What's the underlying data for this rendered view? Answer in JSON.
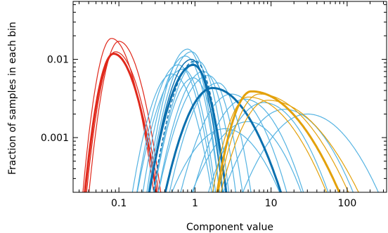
{
  "chart_data": {
    "type": "line",
    "title": "",
    "xlabel": "Component value",
    "ylabel": "Fraction of samples in each bin",
    "xscale": "log",
    "yscale": "log",
    "xlim": [
      0.025,
      330
    ],
    "ylim": [
      0.0002,
      0.055
    ],
    "grid": false,
    "legend": "none",
    "x_ticks": [
      {
        "value": 0.1,
        "label": "0.1"
      },
      {
        "value": 1,
        "label": "1"
      },
      {
        "value": 10,
        "label": "10"
      },
      {
        "value": 100,
        "label": "100"
      }
    ],
    "y_ticks": [
      {
        "value": 0.001,
        "label": "0.001"
      },
      {
        "value": 0.01,
        "label": "0.01"
      }
    ],
    "colors": {
      "red": "#e0281b",
      "dark_blue": "#0a6fae",
      "light_blue": "#55b3e2",
      "orange": "#e3a10a"
    },
    "series": [
      {
        "color": "red",
        "width": 3,
        "dash": "",
        "peak_x": 0.085,
        "peak_y": 0.0118,
        "w_left": 0.2,
        "w_right": 0.3
      },
      {
        "color": "red",
        "width": 1.2,
        "dash": "",
        "peak_x": 0.08,
        "peak_y": 0.0185,
        "w_left": 0.19,
        "w_right": 0.28
      },
      {
        "color": "red",
        "width": 1.2,
        "dash": "",
        "peak_x": 0.1,
        "peak_y": 0.017,
        "w_left": 0.2,
        "w_right": 0.28
      },
      {
        "color": "red",
        "width": 1.2,
        "dash": "",
        "peak_x": 0.09,
        "peak_y": 0.0125,
        "w_left": 0.2,
        "w_right": 0.3
      },
      {
        "color": "light_blue",
        "width": 1.2,
        "dash": "",
        "peak_x": 0.8,
        "peak_y": 0.0135,
        "w_left": 0.28,
        "w_right": 0.22
      },
      {
        "color": "light_blue",
        "width": 1.2,
        "dash": "",
        "peak_x": 0.9,
        "peak_y": 0.0125,
        "w_left": 0.3,
        "w_right": 0.22
      },
      {
        "color": "light_blue",
        "width": 1.2,
        "dash": "",
        "peak_x": 0.75,
        "peak_y": 0.011,
        "w_left": 0.3,
        "w_right": 0.24
      },
      {
        "color": "light_blue",
        "width": 1.2,
        "dash": "",
        "peak_x": 1.1,
        "peak_y": 0.0095,
        "w_left": 0.32,
        "w_right": 0.22
      },
      {
        "color": "light_blue",
        "width": 1.2,
        "dash": "",
        "peak_x": 0.6,
        "peak_y": 0.0085,
        "w_left": 0.3,
        "w_right": 0.26
      },
      {
        "color": "light_blue",
        "width": 1.2,
        "dash": "",
        "peak_x": 0.7,
        "peak_y": 0.0075,
        "w_left": 0.34,
        "w_right": 0.24
      },
      {
        "color": "light_blue",
        "width": 1.2,
        "dash": "",
        "peak_x": 1.3,
        "peak_y": 0.007,
        "w_left": 0.34,
        "w_right": 0.24
      },
      {
        "color": "light_blue",
        "width": 1.2,
        "dash": "",
        "peak_x": 0.5,
        "peak_y": 0.0065,
        "w_left": 0.3,
        "w_right": 0.3
      },
      {
        "color": "light_blue",
        "width": 1.2,
        "dash": "",
        "peak_x": 1.5,
        "peak_y": 0.0062,
        "w_left": 0.38,
        "w_right": 0.26
      },
      {
        "color": "light_blue",
        "width": 1.2,
        "dash": "",
        "peak_x": 2.0,
        "peak_y": 0.005,
        "w_left": 0.38,
        "w_right": 0.26
      },
      {
        "color": "light_blue",
        "width": 1.2,
        "dash": "",
        "peak_x": 0.95,
        "peak_y": 0.0058,
        "w_left": 0.3,
        "w_right": 0.25
      },
      {
        "color": "light_blue",
        "width": 1.2,
        "dash": "",
        "peak_x": 3.0,
        "peak_y": 0.0036,
        "w_left": 0.42,
        "w_right": 0.46
      },
      {
        "color": "light_blue",
        "width": 1.2,
        "dash": "",
        "peak_x": 4.5,
        "peak_y": 0.0031,
        "w_left": 0.44,
        "w_right": 0.5
      },
      {
        "color": "light_blue",
        "width": 1.2,
        "dash": "",
        "peak_x": 8.0,
        "peak_y": 0.0028,
        "w_left": 0.48,
        "w_right": 0.56
      },
      {
        "color": "light_blue",
        "width": 1.2,
        "dash": "",
        "peak_x": 15.0,
        "peak_y": 0.0023,
        "w_left": 0.55,
        "w_right": 0.62
      },
      {
        "color": "light_blue",
        "width": 1.2,
        "dash": "",
        "peak_x": 30.0,
        "peak_y": 0.002,
        "w_left": 0.6,
        "w_right": 0.66
      },
      {
        "color": "light_blue",
        "width": 1.2,
        "dash": "",
        "peak_x": 5.0,
        "peak_y": 0.0016,
        "w_left": 0.55,
        "w_right": 0.52
      },
      {
        "color": "light_blue",
        "width": 1.2,
        "dash": "",
        "peak_x": 2.5,
        "peak_y": 0.0013,
        "w_left": 0.55,
        "w_right": 0.56
      },
      {
        "color": "dark_blue",
        "width": 3,
        "dash": "",
        "peak_x": 0.95,
        "peak_y": 0.0085,
        "w_left": 0.32,
        "w_right": 0.24
      },
      {
        "color": "dark_blue",
        "width": 3,
        "dash": "",
        "peak_x": 1.7,
        "peak_y": 0.0043,
        "w_left": 0.38,
        "w_right": 0.55
      },
      {
        "color": "dark_blue",
        "width": 1.4,
        "dash": "5,3",
        "peak_x": 1.0,
        "peak_y": 0.0095,
        "w_left": 0.3,
        "w_right": 0.22
      },
      {
        "color": "dark_blue",
        "width": 1.4,
        "dash": "",
        "peak_x": 0.9,
        "peak_y": 0.01,
        "w_left": 0.3,
        "w_right": 0.22
      },
      {
        "color": "orange",
        "width": 3,
        "dash": "",
        "peak_x": 5.5,
        "peak_y": 0.0039,
        "w_left": 0.28,
        "w_right": 0.72
      },
      {
        "color": "orange",
        "width": 1.2,
        "dash": "",
        "peak_x": 7.0,
        "peak_y": 0.0036,
        "w_left": 0.34,
        "w_right": 0.74
      },
      {
        "color": "orange",
        "width": 1.2,
        "dash": "",
        "peak_x": 5.0,
        "peak_y": 0.0033,
        "w_left": 0.3,
        "w_right": 0.66
      },
      {
        "color": "orange",
        "width": 1.2,
        "dash": "",
        "peak_x": 9.0,
        "peak_y": 0.003,
        "w_left": 0.4,
        "w_right": 0.78
      }
    ]
  }
}
